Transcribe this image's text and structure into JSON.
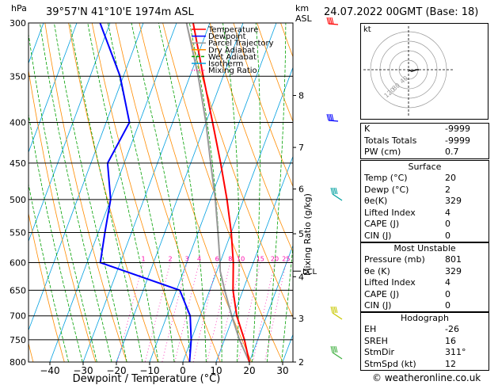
{
  "header": {
    "hpa_label": "hPa",
    "location": "39°57'N  41°10'E  1974m  ASL",
    "km_label": "km",
    "asl_label": "ASL",
    "datetime": "24.07.2022  00GMT  (Base: 18)",
    "footer": "© weatheronline.co.uk"
  },
  "chart_data": {
    "type": "skew-t",
    "xlabel": "Dewpoint / Temperature (°C)",
    "ylabel_right": "Mixing Ratio (g/kg)",
    "pressure_levels": [
      300,
      350,
      400,
      450,
      500,
      550,
      600,
      650,
      700,
      750,
      800
    ],
    "pressure_labels": [
      "300",
      "350",
      "400",
      "450",
      "500",
      "550",
      "600",
      "650",
      "700",
      "750",
      "800"
    ],
    "x_ticks": [
      -40,
      -30,
      -20,
      -10,
      0,
      10,
      20,
      30
    ],
    "x_tick_labels": [
      "−40",
      "−30",
      "−20",
      "−10",
      "0",
      "10",
      "20",
      "30"
    ],
    "xlim": [
      -40,
      35
    ],
    "ylim_hpa": [
      300,
      800
    ],
    "km_ticks": [
      {
        "label": "8",
        "p": 370
      },
      {
        "label": "7",
        "p": 430
      },
      {
        "label": "6",
        "p": 485
      },
      {
        "label": "5",
        "p": 552
      },
      {
        "label": "4",
        "p": 625
      },
      {
        "label": "3",
        "p": 705
      },
      {
        "label": "2",
        "p": 800
      }
    ],
    "lcl_label": "LCL",
    "lcl_p": 615,
    "mixing_ratio_labels": [
      "1",
      "2",
      "3",
      "4",
      "6",
      "8",
      "10",
      "15",
      "20",
      "25"
    ],
    "mixing_ratio_values": [
      1,
      2,
      3,
      4,
      6,
      8,
      10,
      15,
      20,
      25
    ],
    "legend": [
      {
        "name": "Temperature",
        "color": "#ff0000"
      },
      {
        "name": "Dewpoint",
        "color": "#0000ff"
      },
      {
        "name": "Parcel Trajectory",
        "color": "#999999"
      },
      {
        "name": "Dry Adiabat",
        "color": "#ff8c00"
      },
      {
        "name": "Wet Adiabat",
        "color": "#00a000"
      },
      {
        "name": "Isotherm",
        "color": "#00a0e0"
      },
      {
        "name": "Mixing Ratio",
        "color": "#ff00aa"
      }
    ],
    "temperature": [
      {
        "p": 800,
        "t": 20
      },
      {
        "p": 750,
        "t": 16
      },
      {
        "p": 700,
        "t": 11
      },
      {
        "p": 650,
        "t": 7
      },
      {
        "p": 600,
        "t": 4
      },
      {
        "p": 550,
        "t": 0
      },
      {
        "p": 500,
        "t": -5
      },
      {
        "p": 450,
        "t": -11
      },
      {
        "p": 400,
        "t": -18
      },
      {
        "p": 350,
        "t": -26
      },
      {
        "p": 300,
        "t": -35
      }
    ],
    "dewpoint": [
      {
        "p": 800,
        "t": 2
      },
      {
        "p": 750,
        "t": 0
      },
      {
        "p": 700,
        "t": -3
      },
      {
        "p": 650,
        "t": -9
      },
      {
        "p": 600,
        "t": -36
      },
      {
        "p": 550,
        "t": -38
      },
      {
        "p": 500,
        "t": -40
      },
      {
        "p": 450,
        "t": -45
      },
      {
        "p": 400,
        "t": -43
      },
      {
        "p": 350,
        "t": -51
      },
      {
        "p": 300,
        "t": -63
      }
    ],
    "parcel": [
      {
        "p": 800,
        "t": 20
      },
      {
        "p": 750,
        "t": 14.5
      },
      {
        "p": 700,
        "t": 9.5
      },
      {
        "p": 650,
        "t": 4.5
      },
      {
        "p": 615,
        "t": 1
      },
      {
        "p": 600,
        "t": 0
      },
      {
        "p": 550,
        "t": -4
      },
      {
        "p": 500,
        "t": -8.5
      },
      {
        "p": 450,
        "t": -14
      },
      {
        "p": 400,
        "t": -20
      },
      {
        "p": 350,
        "t": -27.5
      },
      {
        "p": 300,
        "t": -37
      }
    ]
  },
  "hodograph": {
    "label": "kt",
    "ring_labels": [
      "40",
      "80",
      "120"
    ]
  },
  "indices": [
    {
      "key": "K",
      "value": "-9999"
    },
    {
      "key": "Totals Totals",
      "value": "-9999"
    },
    {
      "key": "PW (cm)",
      "value": "0.7"
    }
  ],
  "surface": {
    "title": "Surface",
    "rows": [
      {
        "key": "Temp (°C)",
        "value": "20"
      },
      {
        "key": "Dewp (°C)",
        "value": "2"
      },
      {
        "key": "θe(K)",
        "value": "329"
      },
      {
        "key": "Lifted Index",
        "value": "4"
      },
      {
        "key": "CAPE (J)",
        "value": "0"
      },
      {
        "key": "CIN (J)",
        "value": "0"
      }
    ]
  },
  "most_unstable": {
    "title": "Most Unstable",
    "rows": [
      {
        "key": "Pressure (mb)",
        "value": "801"
      },
      {
        "key": "θe (K)",
        "value": "329"
      },
      {
        "key": "Lifted Index",
        "value": "4"
      },
      {
        "key": "CAPE (J)",
        "value": "0"
      },
      {
        "key": "CIN (J)",
        "value": "0"
      }
    ]
  },
  "hodograph_table": {
    "title": "Hodograph",
    "rows": [
      {
        "key": "EH",
        "value": "-26"
      },
      {
        "key": "SREH",
        "value": "16"
      },
      {
        "key": "StmDir",
        "value": "311°"
      },
      {
        "key": "StmSpd (kt)",
        "value": "12"
      }
    ]
  },
  "colors": {
    "temperature": "#ff0000",
    "dewpoint": "#0000ff",
    "parcel": "#999999",
    "dry_adiabat": "#ff8c00",
    "wet_adiabat": "#00a000",
    "isotherm": "#00a0e0",
    "mixing_ratio": "#ff00aa"
  }
}
